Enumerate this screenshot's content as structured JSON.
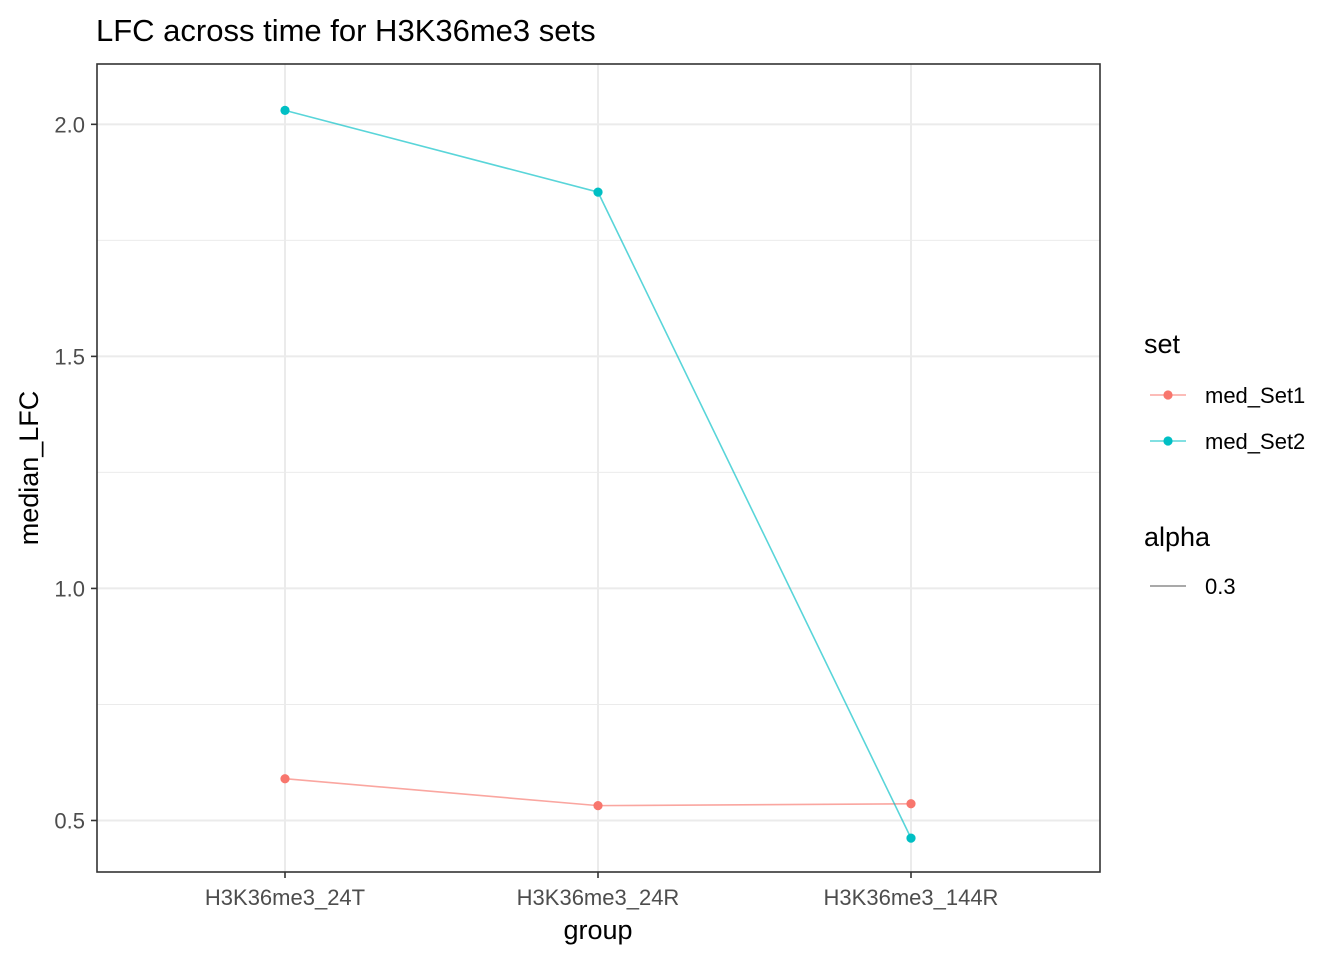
{
  "chart_data": {
    "type": "line",
    "title": "LFC across time for H3K36me3 sets",
    "xlabel": "group",
    "ylabel": "median_LFC",
    "categories": [
      "H3K36me3_24T",
      "H3K36me3_24R",
      "H3K36me3_144R"
    ],
    "ylim": [
      0.389,
      2.13
    ],
    "yticks": [
      "0.5",
      "1.0",
      "1.5",
      "2.0"
    ],
    "ytick_values": [
      0.5,
      1.0,
      1.5,
      2.0
    ],
    "grid": true,
    "legend_position": "right",
    "series": [
      {
        "name": "med_Set1",
        "color": "#F8766D",
        "values": [
          0.59,
          0.532,
          0.536
        ]
      },
      {
        "name": "med_Set2",
        "color": "#00BFC4",
        "values": [
          2.03,
          1.854,
          0.462
        ]
      }
    ],
    "legend": {
      "set_title": "set",
      "alpha_title": "alpha",
      "alpha_value": "0.3"
    }
  }
}
